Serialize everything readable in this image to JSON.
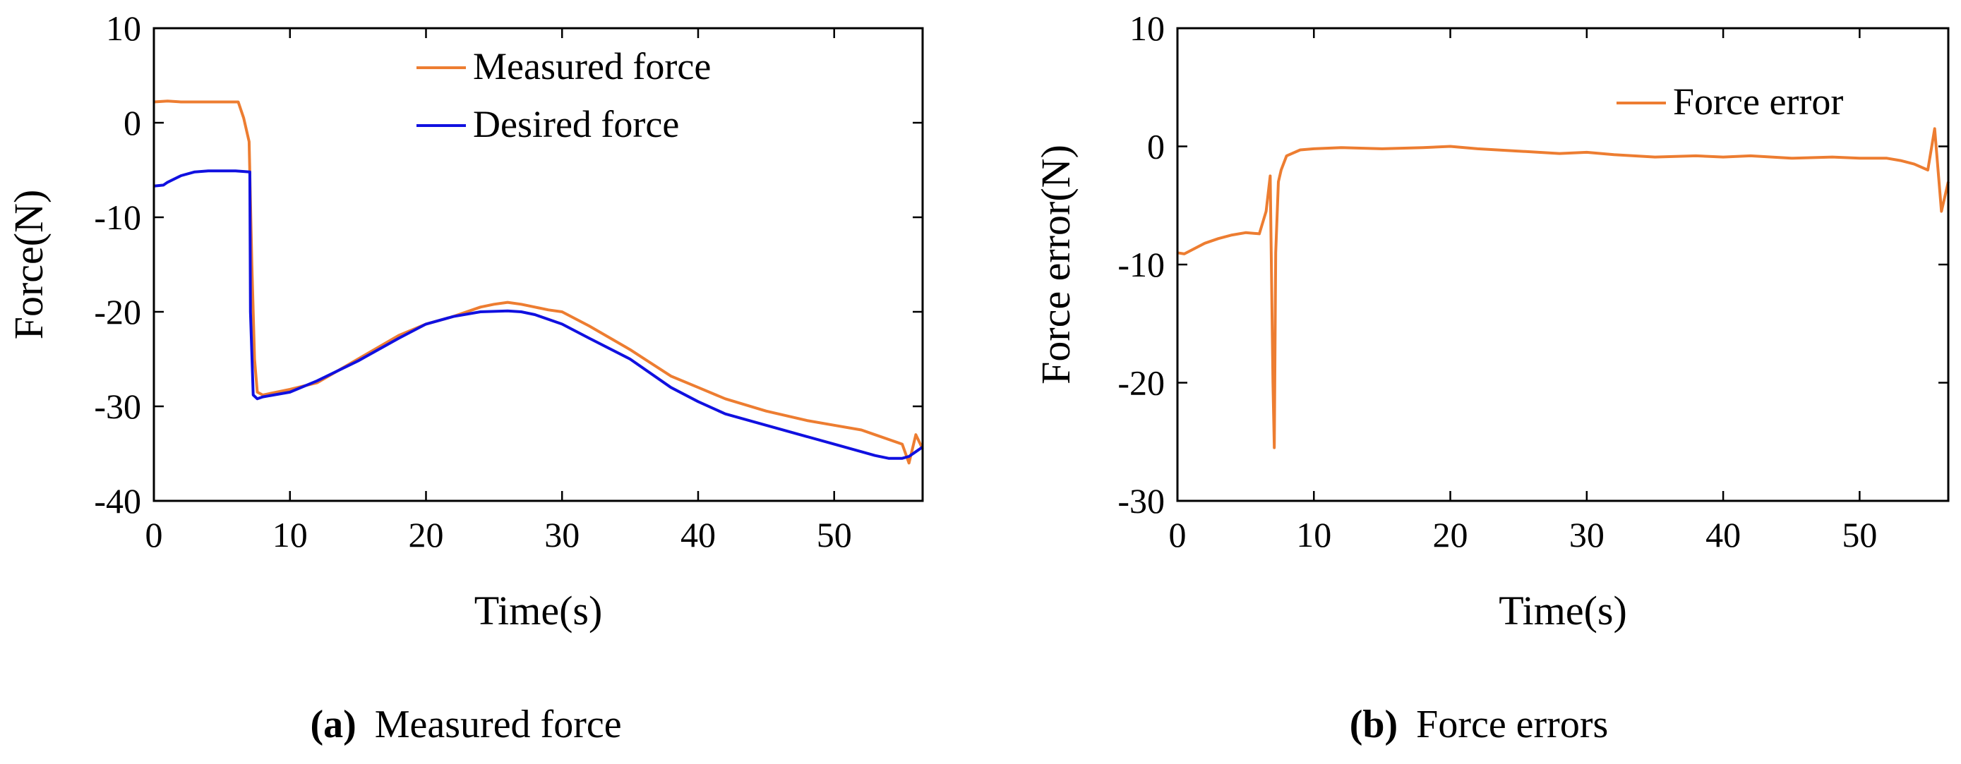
{
  "captions": [
    {
      "letter": "a",
      "text": "Measured force"
    },
    {
      "letter": "b",
      "text": "Force errors"
    }
  ],
  "chart_data": [
    {
      "type": "line",
      "title": "",
      "xlabel": "Time(s)",
      "ylabel": "Force(N)",
      "xlim": [
        0,
        56.5
      ],
      "ylim": [
        -40,
        10
      ],
      "xticks": [
        0,
        10,
        20,
        30,
        40,
        50
      ],
      "yticks": [
        10,
        0,
        -10,
        -20,
        -30,
        -40
      ],
      "grid": false,
      "legend_position": "top-center",
      "series": [
        {
          "name": "Measured force",
          "color": "#ED7D31",
          "x": [
            0,
            1,
            2,
            3,
            4,
            5,
            6.2,
            6.6,
            7.0,
            7.2,
            7.4,
            7.6,
            8,
            10,
            12,
            15,
            18,
            20,
            22,
            24,
            25,
            26,
            27,
            28,
            29,
            30,
            32,
            35,
            38,
            40,
            42,
            45,
            48,
            50,
            52,
            53,
            54,
            55,
            55.5,
            56,
            56.5
          ],
          "y": [
            2.2,
            2.3,
            2.2,
            2.2,
            2.2,
            2.2,
            2.2,
            0.5,
            -2,
            -15,
            -25,
            -28.5,
            -28.8,
            -28.2,
            -27.5,
            -25,
            -22.5,
            -21.3,
            -20.5,
            -19.5,
            -19.2,
            -19.0,
            -19.2,
            -19.5,
            -19.8,
            -20.0,
            -21.5,
            -24.0,
            -26.8,
            -28.0,
            -29.2,
            -30.5,
            -31.5,
            -32.0,
            -32.5,
            -33.0,
            -33.5,
            -34.0,
            -36.0,
            -33.0,
            -34.5
          ]
        },
        {
          "name": "Desired  force",
          "color": "#1010E0",
          "x": [
            0,
            0.7,
            1,
            2,
            3,
            4,
            5,
            6,
            7.05,
            7.1,
            7.3,
            7.6,
            8,
            10,
            12,
            15,
            18,
            20,
            22,
            24,
            26,
            27,
            28,
            30,
            32,
            35,
            38,
            40,
            42,
            45,
            48,
            50,
            52,
            53,
            54,
            55,
            55.5,
            56,
            56.5
          ],
          "y": [
            -6.7,
            -6.6,
            -6.3,
            -5.6,
            -5.2,
            -5.1,
            -5.1,
            -5.1,
            -5.2,
            -20,
            -28.8,
            -29.2,
            -29.0,
            -28.5,
            -27.3,
            -25.2,
            -22.8,
            -21.3,
            -20.5,
            -20.0,
            -19.9,
            -20.0,
            -20.3,
            -21.3,
            -22.8,
            -25.0,
            -28.0,
            -29.5,
            -30.8,
            -32.0,
            -33.2,
            -34.0,
            -34.8,
            -35.2,
            -35.5,
            -35.5,
            -35.3,
            -34.8,
            -34.3
          ]
        }
      ]
    },
    {
      "type": "line",
      "title": "",
      "xlabel": "Time(s)",
      "ylabel": "Force error(N)",
      "xlim": [
        0,
        56.5
      ],
      "ylim": [
        -30,
        10
      ],
      "xticks": [
        0,
        10,
        20,
        30,
        40,
        50
      ],
      "yticks": [
        10,
        0,
        -10,
        -20,
        -30
      ],
      "grid": false,
      "legend_position": "top-right",
      "series": [
        {
          "name": "Force error",
          "color": "#ED7D31",
          "x": [
            0,
            0.5,
            1,
            2,
            3,
            4,
            5,
            6,
            6.5,
            6.8,
            7.0,
            7.1,
            7.2,
            7.4,
            7.6,
            8,
            9,
            10,
            12,
            15,
            18,
            20,
            22,
            25,
            28,
            30,
            32,
            35,
            38,
            40,
            42,
            45,
            48,
            50,
            52,
            53,
            54,
            55,
            55.5,
            56,
            56.5
          ],
          "y": [
            -9.0,
            -9.1,
            -8.8,
            -8.2,
            -7.8,
            -7.5,
            -7.3,
            -7.4,
            -5.5,
            -2.5,
            -20.0,
            -25.5,
            -9.0,
            -3.0,
            -2.0,
            -0.8,
            -0.3,
            -0.2,
            -0.1,
            -0.2,
            -0.1,
            0.0,
            -0.2,
            -0.4,
            -0.6,
            -0.5,
            -0.7,
            -0.9,
            -0.8,
            -0.9,
            -0.8,
            -1.0,
            -0.9,
            -1.0,
            -1.0,
            -1.2,
            -1.5,
            -2.0,
            1.5,
            -5.5,
            -3.0
          ]
        }
      ]
    }
  ]
}
